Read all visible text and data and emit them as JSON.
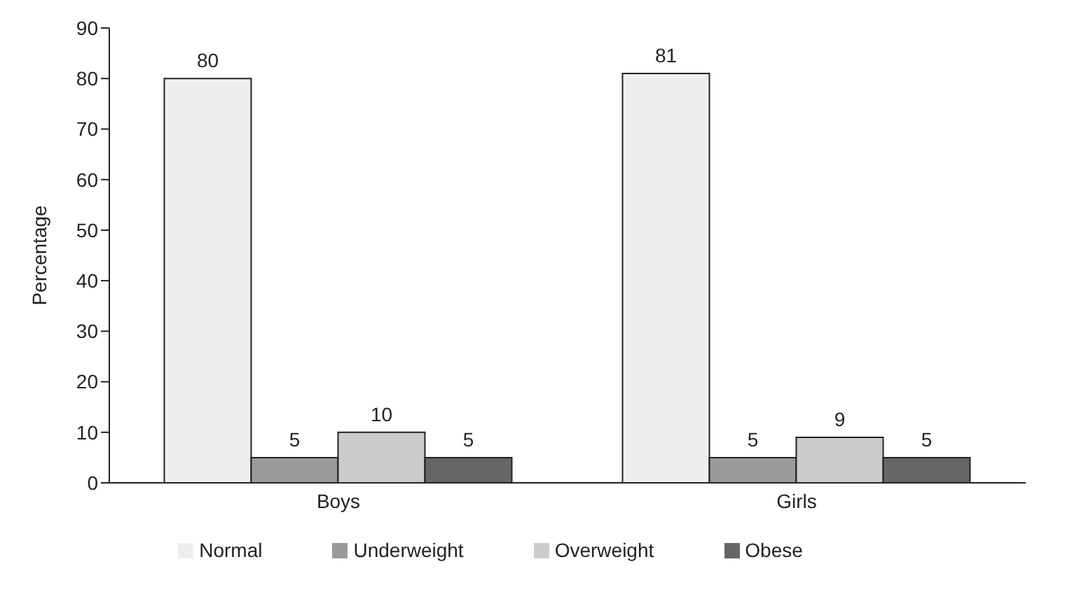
{
  "chart_data": {
    "type": "bar",
    "categories": [
      "Boys",
      "Girls"
    ],
    "ylabel": "Percentage",
    "ylim": [
      0,
      90
    ],
    "yticks": [
      0,
      10,
      20,
      30,
      40,
      50,
      60,
      70,
      80,
      90
    ],
    "grid": false,
    "legend": "bottom",
    "data_labels": true,
    "series": [
      {
        "name": "Normal",
        "color": "#eeeeee",
        "values": [
          80,
          81
        ]
      },
      {
        "name": "Underweight",
        "color": "#999999",
        "values": [
          5,
          5
        ]
      },
      {
        "name": "Overweight",
        "color": "#cccccc",
        "values": [
          10,
          9
        ]
      },
      {
        "name": "Obese",
        "color": "#666666",
        "values": [
          5,
          5
        ]
      }
    ]
  }
}
